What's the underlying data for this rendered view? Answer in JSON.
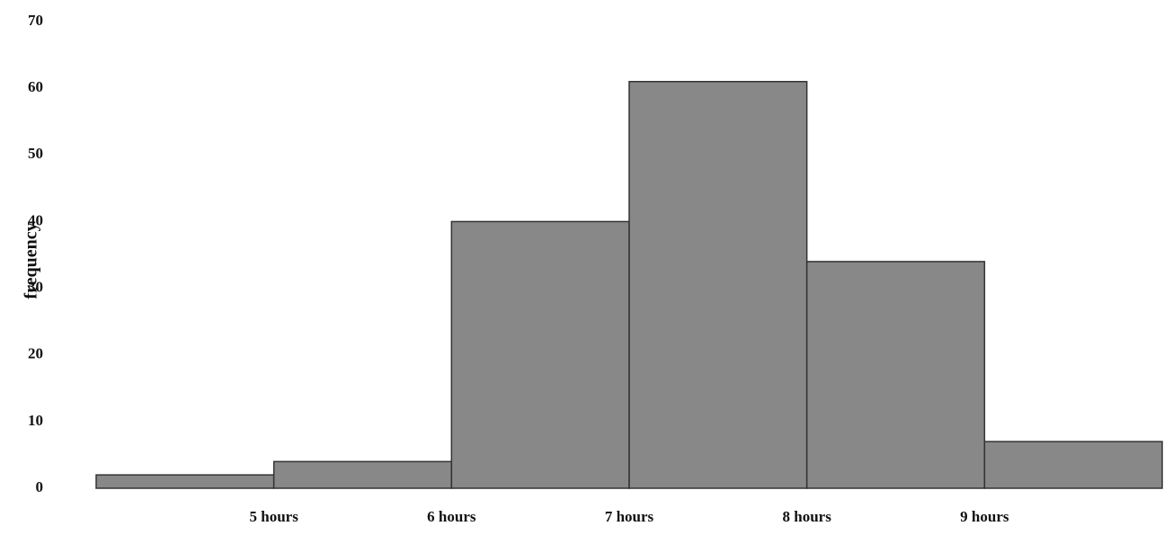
{
  "chart_data": {
    "type": "histogram",
    "y_label": "frequency",
    "bins": [
      4,
      5,
      6,
      7,
      8,
      9,
      10
    ],
    "counts": [
      2,
      4,
      40,
      61,
      34,
      7
    ],
    "color": "#888888",
    "edge_color": "#333333",
    "xlim": [
      4,
      10
    ],
    "xticks": [
      {
        "value": 5,
        "label": "5 hours"
      },
      {
        "value": 6,
        "label": "6 hours"
      },
      {
        "value": 7,
        "label": "7 hours"
      },
      {
        "value": 8,
        "label": "8 hours"
      },
      {
        "value": 9,
        "label": "9 hours"
      }
    ],
    "ylim": [
      0,
      70
    ],
    "yticks": [
      0,
      10,
      20,
      30,
      40,
      50,
      60,
      70
    ],
    "grid": false
  }
}
